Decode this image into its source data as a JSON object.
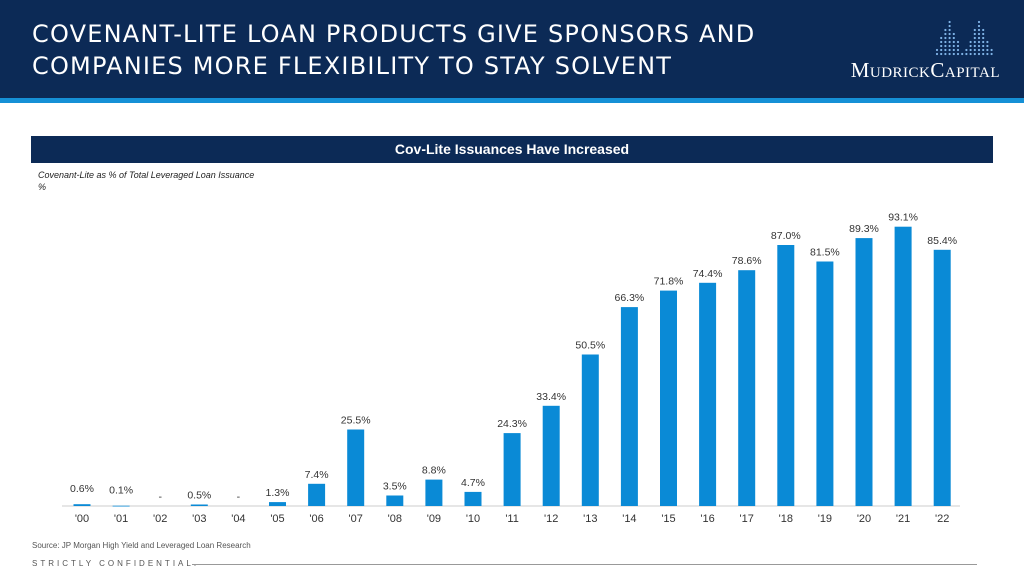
{
  "header": {
    "title": "COVENANT-LITE LOAN PRODUCTS GIVE SPONSORS AND COMPANIES MORE FLEXIBILITY TO STAY SOLVENT",
    "logo_text": "MudrickCapital",
    "logo_icon": "mountain-grid-icon"
  },
  "chart_data": {
    "type": "bar",
    "title": "Cov-Lite Issuances Have Increased",
    "subtitle": "Covenant-Lite as % of Total Leveraged Loan Issuance",
    "unit_label": "%",
    "categories": [
      "'00",
      "'01",
      "'02",
      "'03",
      "'04",
      "'05",
      "'06",
      "'07",
      "'08",
      "'09",
      "'10",
      "'11",
      "'12",
      "'13",
      "'14",
      "'15",
      "'16",
      "'17",
      "'18",
      "'19",
      "'20",
      "'21",
      "'22"
    ],
    "values": [
      0.6,
      0.1,
      0,
      0.5,
      0,
      1.3,
      7.4,
      25.5,
      3.5,
      8.8,
      4.7,
      24.3,
      33.4,
      50.5,
      66.3,
      71.8,
      74.4,
      78.6,
      87.0,
      81.5,
      89.3,
      93.1,
      85.4
    ],
    "labels": [
      "0.6%",
      "0.1%",
      "-",
      "0.5%",
      "-",
      "1.3%",
      "7.4%",
      "25.5%",
      "3.5%",
      "8.8%",
      "4.7%",
      "24.3%",
      "33.4%",
      "50.5%",
      "66.3%",
      "71.8%",
      "74.4%",
      "78.6%",
      "87.0%",
      "81.5%",
      "89.3%",
      "93.1%",
      "85.4%"
    ],
    "ylim": [
      0,
      100
    ],
    "bar_color": "#0a8ad6",
    "grid": false,
    "legend": "none"
  },
  "footer": {
    "source": "Source: JP Morgan High Yield and Leveraged Loan Research",
    "confidential": "STRICTLY CONFIDENTIAL."
  },
  "colors": {
    "navy": "#0c2a56",
    "accent_blue": "#1590d6"
  }
}
